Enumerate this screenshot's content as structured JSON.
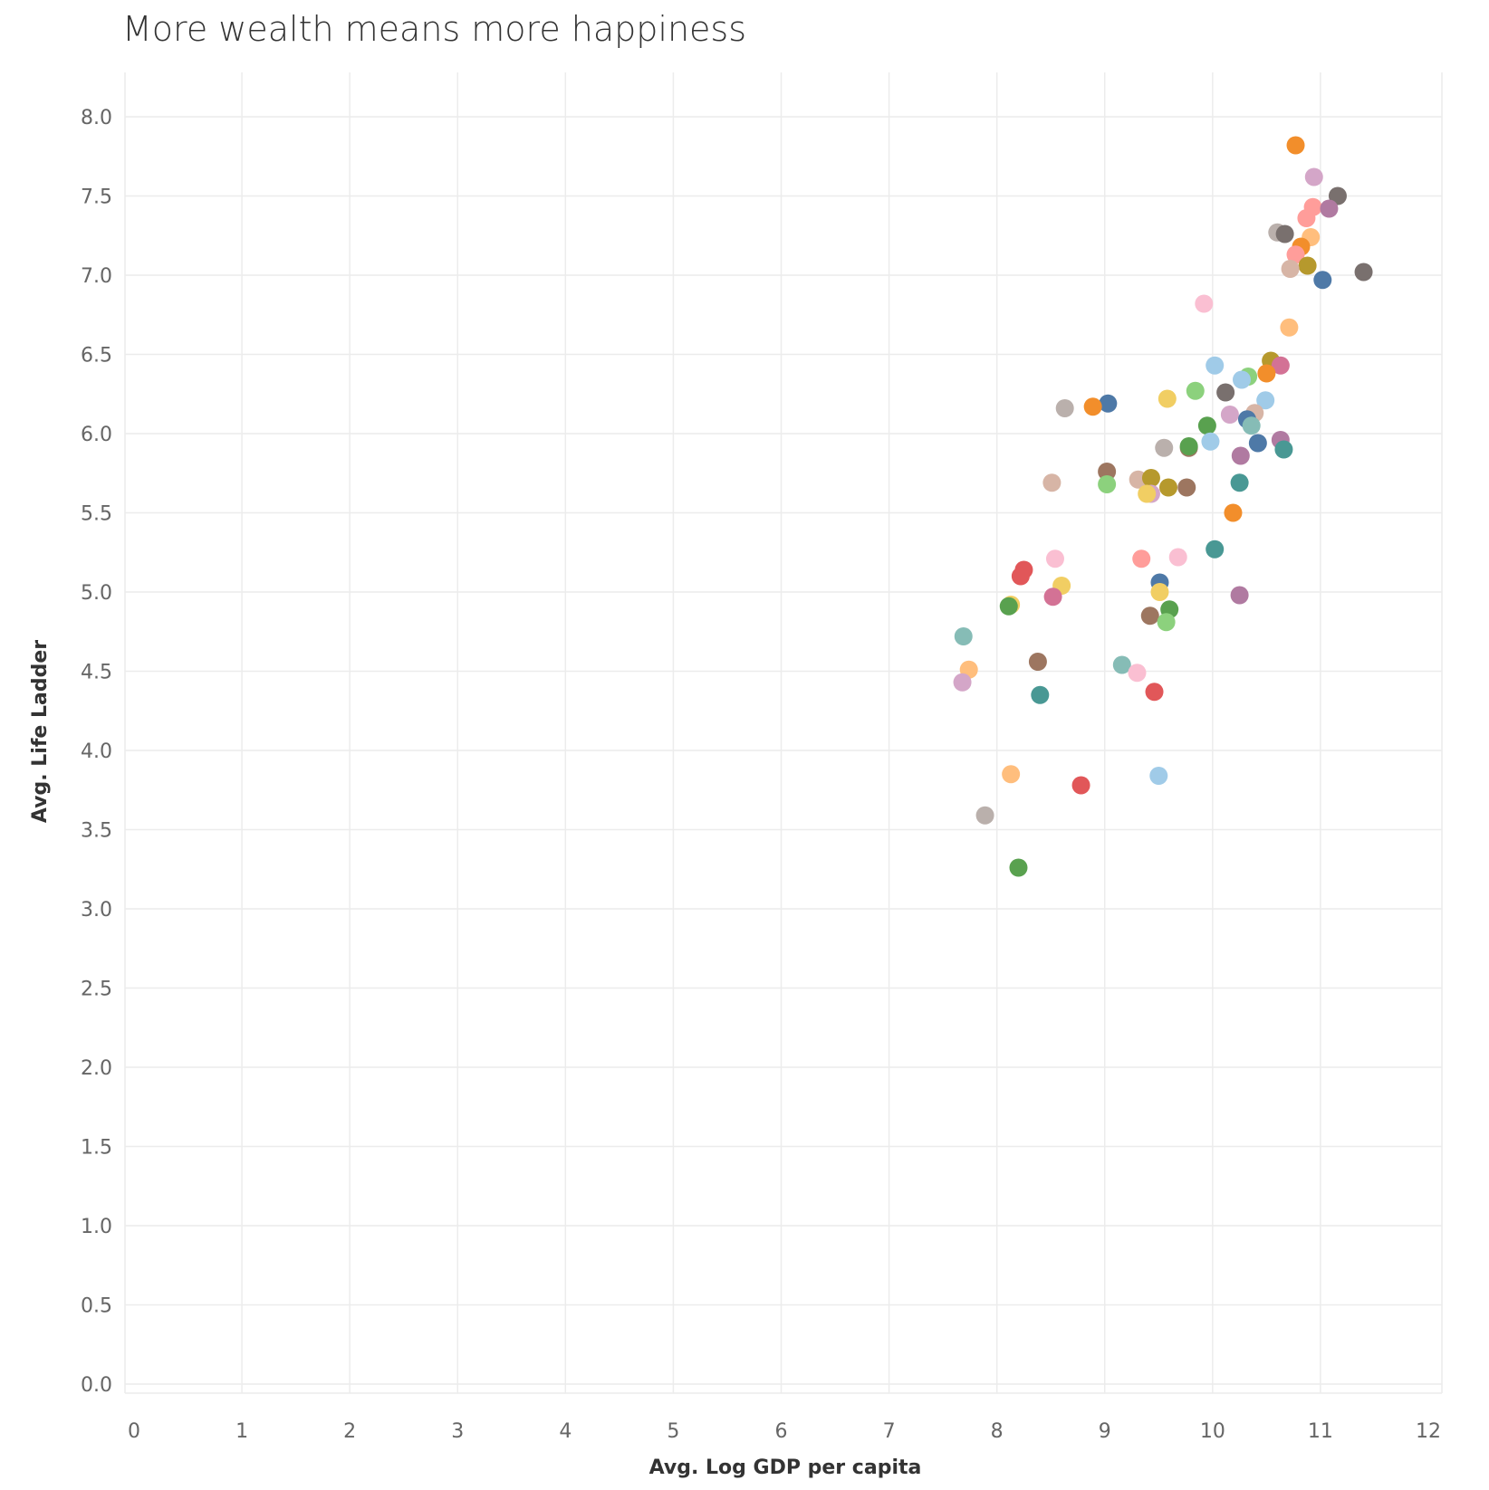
{
  "chart_data": {
    "type": "scatter",
    "title": "More wealth means more happiness",
    "xlabel": "Avg. Log GDP per capita",
    "ylabel": "Avg. Life Ladder",
    "xlim": [
      0,
      12
    ],
    "ylim": [
      0,
      8
    ],
    "x_ticks": [
      "0",
      "1",
      "2",
      "3",
      "4",
      "5",
      "6",
      "7",
      "8",
      "9",
      "10",
      "11",
      "12"
    ],
    "y_ticks": [
      "0.0",
      "0.5",
      "1.0",
      "1.5",
      "2.0",
      "2.5",
      "3.0",
      "3.5",
      "4.0",
      "4.5",
      "5.0",
      "5.5",
      "6.0",
      "6.5",
      "7.0",
      "7.5",
      "8.0"
    ],
    "grid": true,
    "points": [
      {
        "x": 10.77,
        "y": 7.82,
        "color": "#f28e2b"
      },
      {
        "x": 10.94,
        "y": 7.62,
        "color": "#d4a6c8"
      },
      {
        "x": 11.16,
        "y": 7.5,
        "color": "#79706e"
      },
      {
        "x": 10.93,
        "y": 7.43,
        "color": "#ff9d9a"
      },
      {
        "x": 11.08,
        "y": 7.42,
        "color": "#b07aa1"
      },
      {
        "x": 10.87,
        "y": 7.36,
        "color": "#ff9d9a"
      },
      {
        "x": 10.6,
        "y": 7.27,
        "color": "#bab0ac"
      },
      {
        "x": 10.67,
        "y": 7.26,
        "color": "#79706e"
      },
      {
        "x": 10.91,
        "y": 7.24,
        "color": "#ffbe7d"
      },
      {
        "x": 10.82,
        "y": 7.18,
        "color": "#f28e2b"
      },
      {
        "x": 10.77,
        "y": 7.13,
        "color": "#ff9d9a"
      },
      {
        "x": 10.88,
        "y": 7.06,
        "color": "#b6992d"
      },
      {
        "x": 10.72,
        "y": 7.04,
        "color": "#d7b5a6"
      },
      {
        "x": 11.4,
        "y": 7.02,
        "color": "#79706e"
      },
      {
        "x": 11.02,
        "y": 6.97,
        "color": "#4e79a7"
      },
      {
        "x": 9.92,
        "y": 6.82,
        "color": "#fabfd2"
      },
      {
        "x": 10.71,
        "y": 6.67,
        "color": "#ffbe7d"
      },
      {
        "x": 10.54,
        "y": 6.46,
        "color": "#b6992d"
      },
      {
        "x": 10.63,
        "y": 6.43,
        "color": "#d37295"
      },
      {
        "x": 10.02,
        "y": 6.43,
        "color": "#a0cbe8"
      },
      {
        "x": 10.5,
        "y": 6.38,
        "color": "#f28e2b"
      },
      {
        "x": 10.33,
        "y": 6.36,
        "color": "#8cd17d"
      },
      {
        "x": 10.27,
        "y": 6.34,
        "color": "#a0cbe8"
      },
      {
        "x": 9.84,
        "y": 6.27,
        "color": "#8cd17d"
      },
      {
        "x": 10.12,
        "y": 6.26,
        "color": "#79706e"
      },
      {
        "x": 9.58,
        "y": 6.22,
        "color": "#f1ce63"
      },
      {
        "x": 10.49,
        "y": 6.21,
        "color": "#a0cbe8"
      },
      {
        "x": 9.03,
        "y": 6.19,
        "color": "#4e79a7"
      },
      {
        "x": 8.89,
        "y": 6.17,
        "color": "#f28e2b"
      },
      {
        "x": 8.63,
        "y": 6.16,
        "color": "#bab0ac"
      },
      {
        "x": 10.39,
        "y": 6.13,
        "color": "#d7b5a6"
      },
      {
        "x": 10.16,
        "y": 6.12,
        "color": "#d4a6c8"
      },
      {
        "x": 10.32,
        "y": 6.09,
        "color": "#4e79a7"
      },
      {
        "x": 10.36,
        "y": 6.05,
        "color": "#86bcb6"
      },
      {
        "x": 9.95,
        "y": 6.05,
        "color": "#59a14f"
      },
      {
        "x": 10.63,
        "y": 5.96,
        "color": "#b07aa1"
      },
      {
        "x": 9.98,
        "y": 5.95,
        "color": "#a0cbe8"
      },
      {
        "x": 10.42,
        "y": 5.94,
        "color": "#4e79a7"
      },
      {
        "x": 9.78,
        "y": 5.91,
        "color": "#9d7660"
      },
      {
        "x": 9.78,
        "y": 5.92,
        "color": "#59a14f"
      },
      {
        "x": 9.55,
        "y": 5.91,
        "color": "#bab0ac"
      },
      {
        "x": 10.66,
        "y": 5.9,
        "color": "#499894"
      },
      {
        "x": 10.26,
        "y": 5.86,
        "color": "#b07aa1"
      },
      {
        "x": 9.02,
        "y": 5.76,
        "color": "#9d7660"
      },
      {
        "x": 9.31,
        "y": 5.71,
        "color": "#d7b5a6"
      },
      {
        "x": 9.43,
        "y": 5.72,
        "color": "#b6992d"
      },
      {
        "x": 8.51,
        "y": 5.69,
        "color": "#d7b5a6"
      },
      {
        "x": 10.25,
        "y": 5.69,
        "color": "#499894"
      },
      {
        "x": 9.02,
        "y": 5.68,
        "color": "#8cd17d"
      },
      {
        "x": 9.59,
        "y": 5.66,
        "color": "#b6992d"
      },
      {
        "x": 9.76,
        "y": 5.66,
        "color": "#9d7660"
      },
      {
        "x": 9.43,
        "y": 5.62,
        "color": "#d4a6c8"
      },
      {
        "x": 9.39,
        "y": 5.62,
        "color": "#f1ce63"
      },
      {
        "x": 10.19,
        "y": 5.5,
        "color": "#f28e2b"
      },
      {
        "x": 10.02,
        "y": 5.27,
        "color": "#499894"
      },
      {
        "x": 9.68,
        "y": 5.22,
        "color": "#fabfd2"
      },
      {
        "x": 9.34,
        "y": 5.21,
        "color": "#ff9d9a"
      },
      {
        "x": 8.54,
        "y": 5.21,
        "color": "#fabfd2"
      },
      {
        "x": 8.25,
        "y": 5.14,
        "color": "#e15759"
      },
      {
        "x": 8.22,
        "y": 5.1,
        "color": "#e15759"
      },
      {
        "x": 9.51,
        "y": 5.06,
        "color": "#4e79a7"
      },
      {
        "x": 8.6,
        "y": 5.04,
        "color": "#f1ce63"
      },
      {
        "x": 9.51,
        "y": 5.0,
        "color": "#f1ce63"
      },
      {
        "x": 10.25,
        "y": 4.98,
        "color": "#b07aa1"
      },
      {
        "x": 8.52,
        "y": 4.97,
        "color": "#d37295"
      },
      {
        "x": 8.13,
        "y": 4.92,
        "color": "#f1ce63"
      },
      {
        "x": 8.11,
        "y": 4.91,
        "color": "#59a14f"
      },
      {
        "x": 9.6,
        "y": 4.89,
        "color": "#59a14f"
      },
      {
        "x": 9.42,
        "y": 4.85,
        "color": "#9d7660"
      },
      {
        "x": 9.57,
        "y": 4.81,
        "color": "#8cd17d"
      },
      {
        "x": 7.69,
        "y": 4.72,
        "color": "#86bcb6"
      },
      {
        "x": 8.38,
        "y": 4.56,
        "color": "#9d7660"
      },
      {
        "x": 9.16,
        "y": 4.54,
        "color": "#86bcb6"
      },
      {
        "x": 7.74,
        "y": 4.51,
        "color": "#ffbe7d"
      },
      {
        "x": 9.3,
        "y": 4.49,
        "color": "#fabfd2"
      },
      {
        "x": 7.68,
        "y": 4.43,
        "color": "#d4a6c8"
      },
      {
        "x": 9.46,
        "y": 4.37,
        "color": "#e15759"
      },
      {
        "x": 8.4,
        "y": 4.35,
        "color": "#499894"
      },
      {
        "x": 8.13,
        "y": 3.85,
        "color": "#ffbe7d"
      },
      {
        "x": 9.5,
        "y": 3.84,
        "color": "#a0cbe8"
      },
      {
        "x": 8.78,
        "y": 3.78,
        "color": "#e15759"
      },
      {
        "x": 7.89,
        "y": 3.59,
        "color": "#bab0ac"
      },
      {
        "x": 8.2,
        "y": 3.26,
        "color": "#59a14f"
      }
    ]
  }
}
